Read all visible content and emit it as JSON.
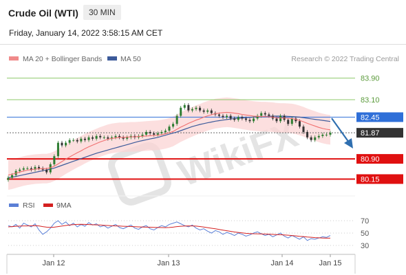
{
  "header": {
    "instrument": "Crude Oil (WTI)",
    "timeframe": "30 MIN",
    "datetime": "Friday, January 14, 2022 3:58:15 AM CET"
  },
  "legend": {
    "ma20": "MA 20 + Bollinger Bands",
    "ma50": "MA 50",
    "credit": "Research © 2022 Trading Central"
  },
  "rsi_legend": {
    "rsi": "RSI",
    "ma9": "9MA"
  },
  "watermark": "WikiFX",
  "colors": {
    "up_candle": "#2e7d32",
    "down_candle": "#333333",
    "ma20": "#f07070",
    "bollinger_fill": "#fbd4d4",
    "ma50": "#3c5a9a",
    "support": "#e01010",
    "resistance": "#8dc86a",
    "pivot": "#2f6fd8",
    "current": "#333333",
    "rsi": "#5b7fd6",
    "rsi_ma": "#d42020",
    "arrow": "#2f6fb0"
  },
  "chart_data": [
    {
      "type": "line",
      "subtype": "candlestick",
      "title": "",
      "ylim": [
        79.6,
        84.3
      ],
      "x_ticks": [
        "Jan 12",
        "Jan 13",
        "Jan 14",
        "Jan 15"
      ],
      "levels": [
        {
          "value": 83.9,
          "label": "83.90",
          "kind": "resistance"
        },
        {
          "value": 83.1,
          "label": "83.10",
          "kind": "resistance"
        },
        {
          "value": 82.45,
          "label": "82.45",
          "kind": "pivot"
        },
        {
          "value": 81.87,
          "label": "81.87",
          "kind": "current"
        },
        {
          "value": 80.9,
          "label": "80.90",
          "kind": "support"
        },
        {
          "value": 80.15,
          "label": "80.15",
          "kind": "support"
        }
      ],
      "price_close": [
        80.2,
        80.3,
        80.45,
        80.5,
        80.55,
        80.55,
        80.5,
        80.6,
        80.55,
        80.5,
        80.4,
        80.7,
        81.0,
        81.5,
        81.4,
        81.5,
        81.6,
        81.6,
        81.55,
        81.65,
        81.6,
        81.7,
        81.65,
        81.75,
        81.7,
        81.7,
        81.65,
        81.7,
        81.75,
        81.7,
        81.65,
        81.7,
        81.75,
        81.7,
        81.75,
        81.8,
        81.9,
        81.85,
        81.8,
        81.85,
        81.9,
        81.95,
        82.1,
        82.2,
        82.5,
        82.8,
        82.9,
        82.7,
        82.75,
        82.8,
        82.7,
        82.65,
        82.7,
        82.6,
        82.55,
        82.5,
        82.45,
        82.5,
        82.4,
        82.35,
        82.45,
        82.4,
        82.35,
        82.3,
        82.4,
        82.5,
        82.6,
        82.55,
        82.5,
        82.4,
        82.3,
        82.5,
        82.35,
        82.2,
        82.4,
        82.3,
        82.1,
        81.9,
        81.7,
        81.6,
        81.7,
        81.75,
        81.8,
        81.8,
        81.87
      ],
      "ma20": [
        80.3,
        80.33,
        80.37,
        80.41,
        80.45,
        80.48,
        80.5,
        80.52,
        80.53,
        80.54,
        80.54,
        80.57,
        80.63,
        80.71,
        80.8,
        80.89,
        80.97,
        81.05,
        81.13,
        81.2,
        81.28,
        81.35,
        81.41,
        81.47,
        81.53,
        81.58,
        81.63,
        81.66,
        81.68,
        81.7,
        81.7,
        81.71,
        81.72,
        81.72,
        81.73,
        81.74,
        81.75,
        81.76,
        81.77,
        81.78,
        81.8,
        81.83,
        81.87,
        81.92,
        82.0,
        82.08,
        82.15,
        82.22,
        82.28,
        82.34,
        82.39,
        82.45,
        82.5,
        82.54,
        82.58,
        82.6,
        82.62,
        82.63,
        82.62,
        82.6,
        82.58,
        82.55,
        82.53,
        82.51,
        82.49,
        82.48,
        82.47,
        82.47,
        82.46,
        82.45,
        82.43,
        82.42,
        82.42,
        82.41,
        82.4,
        82.37,
        82.33,
        82.28,
        82.22,
        82.17,
        82.12,
        82.07,
        82.03,
        82.0,
        81.98
      ],
      "ma50": [
        80.2,
        80.22,
        80.25,
        80.28,
        80.31,
        80.34,
        80.37,
        80.4,
        80.43,
        80.46,
        80.49,
        80.52,
        80.56,
        80.61,
        80.66,
        80.71,
        80.76,
        80.81,
        80.86,
        80.91,
        80.96,
        81.01,
        81.06,
        81.11,
        81.15,
        81.19,
        81.23,
        81.27,
        81.31,
        81.35,
        81.39,
        81.43,
        81.47,
        81.51,
        81.55,
        81.58,
        81.61,
        81.64,
        81.67,
        81.7,
        81.74,
        81.78,
        81.82,
        81.86,
        81.9,
        81.95,
        82.0,
        82.05,
        82.1,
        82.14,
        82.18,
        82.21,
        82.24,
        82.27,
        82.3,
        82.32,
        82.34,
        82.36,
        82.38,
        82.4,
        82.41,
        82.42,
        82.43,
        82.44,
        82.45,
        82.46,
        82.47,
        82.48,
        82.48,
        82.49,
        82.49,
        82.49,
        82.49,
        82.48,
        82.47,
        82.46,
        82.45,
        82.43,
        82.41,
        82.39,
        82.37,
        82.35,
        82.33,
        82.31,
        82.29
      ]
    },
    {
      "type": "line",
      "title": "",
      "ylim": [
        20,
        80
      ],
      "y_ticks": [
        70,
        50,
        30
      ],
      "x_ticks": [
        "Jan 12",
        "Jan 13",
        "Jan 14",
        "Jan 15"
      ],
      "series": [
        {
          "name": "RSI",
          "values": [
            62,
            60,
            64,
            58,
            66,
            63,
            60,
            65,
            55,
            48,
            52,
            58,
            66,
            70,
            64,
            68,
            62,
            66,
            60,
            64,
            61,
            67,
            63,
            65,
            60,
            62,
            58,
            61,
            64,
            59,
            57,
            60,
            63,
            58,
            56,
            60,
            62,
            57,
            55,
            59,
            62,
            60,
            64,
            66,
            68,
            65,
            62,
            60,
            63,
            58,
            55,
            57,
            53,
            50,
            54,
            52,
            48,
            51,
            49,
            46,
            50,
            48,
            45,
            47,
            50,
            52,
            49,
            46,
            48,
            44,
            47,
            50,
            45,
            42,
            46,
            43,
            40,
            44,
            38,
            41,
            40,
            42,
            44,
            43,
            46
          ]
        },
        {
          "name": "9MA",
          "values": [
            60,
            60.5,
            61,
            61.2,
            61.5,
            61.6,
            61.8,
            62,
            61.5,
            60.5,
            59.5,
            59.2,
            59.6,
            60.4,
            61.4,
            62.2,
            63,
            63.6,
            64,
            64.1,
            64,
            63.8,
            63.5,
            63.2,
            63,
            62.6,
            62.2,
            61.8,
            61.6,
            61.3,
            61,
            60.8,
            60.6,
            60.3,
            60,
            59.8,
            59.6,
            59.4,
            59.2,
            59,
            58.9,
            58.8,
            59,
            59.6,
            60.4,
            61,
            61.3,
            61.5,
            61.5,
            61.2,
            60.6,
            59.8,
            58.8,
            57.8,
            56.9,
            55.8,
            54.8,
            53.8,
            52.8,
            51.8,
            51,
            50.2,
            49.6,
            49.2,
            48.9,
            48.8,
            48.6,
            48.4,
            48.2,
            47.9,
            47.6,
            47.3,
            47,
            46.5,
            46,
            45.4,
            44.8,
            44.3,
            43.7,
            43.2,
            42.7,
            42.3,
            42,
            41.8,
            41.8
          ]
        }
      ]
    }
  ]
}
